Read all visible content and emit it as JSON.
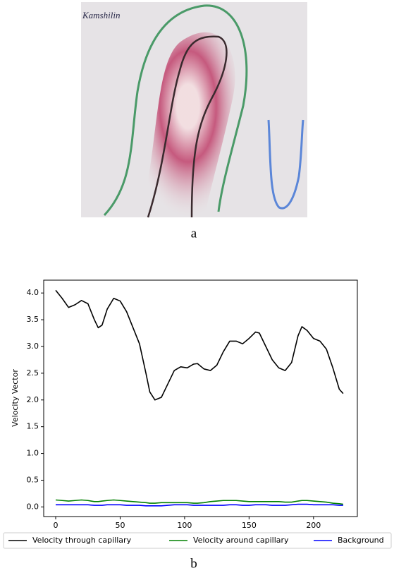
{
  "figure_a": {
    "image_text": "Kamshilin",
    "caption": "a"
  },
  "chart_data": {
    "type": "line",
    "ylabel": "Velocity Vector",
    "x": [
      0,
      5,
      10,
      15,
      20,
      25,
      30,
      33,
      36,
      40,
      45,
      50,
      55,
      60,
      65,
      70,
      73,
      77,
      82,
      87,
      92,
      97,
      102,
      107,
      110,
      115,
      120,
      125,
      130,
      135,
      140,
      145,
      150,
      155,
      158,
      163,
      168,
      173,
      178,
      183,
      188,
      191,
      195,
      200,
      205,
      210,
      215,
      220,
      223
    ],
    "series": [
      {
        "name": "Velocity through capillary",
        "color": "#000000",
        "values": [
          4.05,
          3.9,
          3.73,
          3.78,
          3.86,
          3.8,
          3.5,
          3.35,
          3.4,
          3.7,
          3.9,
          3.85,
          3.65,
          3.35,
          3.05,
          2.5,
          2.15,
          2.0,
          2.05,
          2.3,
          2.55,
          2.62,
          2.6,
          2.67,
          2.68,
          2.58,
          2.55,
          2.65,
          2.9,
          3.1,
          3.1,
          3.05,
          3.15,
          3.27,
          3.25,
          3.0,
          2.75,
          2.6,
          2.55,
          2.7,
          3.2,
          3.37,
          3.3,
          3.15,
          3.1,
          2.95,
          2.6,
          2.2,
          2.12
        ]
      },
      {
        "name": "Velocity around capillary",
        "color": "#008000",
        "values": [
          0.13,
          0.12,
          0.11,
          0.12,
          0.13,
          0.12,
          0.1,
          0.1,
          0.11,
          0.12,
          0.13,
          0.12,
          0.11,
          0.1,
          0.09,
          0.08,
          0.07,
          0.07,
          0.08,
          0.08,
          0.08,
          0.08,
          0.08,
          0.07,
          0.07,
          0.08,
          0.1,
          0.11,
          0.12,
          0.12,
          0.12,
          0.11,
          0.1,
          0.1,
          0.1,
          0.1,
          0.1,
          0.1,
          0.09,
          0.09,
          0.11,
          0.12,
          0.12,
          0.11,
          0.1,
          0.09,
          0.07,
          0.06,
          0.05
        ]
      },
      {
        "name": "Background",
        "color": "#0000ff",
        "values": [
          0.04,
          0.04,
          0.04,
          0.04,
          0.04,
          0.04,
          0.03,
          0.03,
          0.03,
          0.04,
          0.04,
          0.04,
          0.03,
          0.03,
          0.03,
          0.02,
          0.02,
          0.02,
          0.02,
          0.03,
          0.04,
          0.04,
          0.04,
          0.03,
          0.03,
          0.03,
          0.03,
          0.03,
          0.03,
          0.04,
          0.04,
          0.03,
          0.03,
          0.04,
          0.04,
          0.04,
          0.03,
          0.03,
          0.03,
          0.04,
          0.05,
          0.05,
          0.05,
          0.04,
          0.04,
          0.04,
          0.04,
          0.03,
          0.03
        ]
      }
    ],
    "xlim": [
      -9.3,
      234
    ],
    "ylim": [
      -0.18,
      4.24
    ],
    "xticks": [
      0,
      50,
      100,
      150,
      200
    ],
    "yticks": [
      {
        "value": 0,
        "label": "0.0"
      },
      {
        "value": 0.5,
        "label": "0.5"
      },
      {
        "value": 1,
        "label": "1.0"
      },
      {
        "value": 1.5,
        "label": "1.5"
      },
      {
        "value": 2,
        "label": "2.0"
      },
      {
        "value": 2.5,
        "label": "2.5"
      },
      {
        "value": 3,
        "label": "3.0"
      },
      {
        "value": 3.5,
        "label": "3.5"
      },
      {
        "value": 4,
        "label": "4.0"
      }
    ],
    "legend": "bottom"
  },
  "caption_b": "b"
}
